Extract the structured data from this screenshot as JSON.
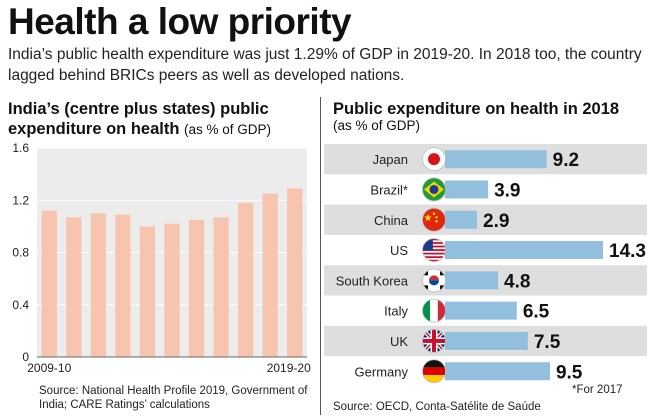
{
  "headline": "Health a low priority",
  "intro": "India’s public health expenditure was just 1.29% of GDP in 2019-20. In 2018 too, the country lagged behind BRICs peers as well as developed nations.",
  "left_panel": {
    "title": "India’s (centre plus states) public expenditure on health",
    "unit": "(as % of GDP)",
    "source": "Source: National Health Profile 2019, Government of India; CARE Ratings’ calculations"
  },
  "right_panel": {
    "title": "Public expenditure on health in 2018",
    "unit": "(as % of GDP)",
    "source": "Source: OECD, Conta-Satélite de Saúde",
    "footnote": "*For 2017"
  },
  "colors": {
    "india_bar": "#f7c4b0",
    "plot_bg": "#ececec",
    "country_bar": "#92bfdd",
    "row_shade": "#dedede"
  },
  "chart_data": [
    {
      "type": "bar",
      "title": "India’s (centre plus states) public expenditure on health",
      "ylabel": "(as % of GDP)",
      "ylim": [
        0,
        1.6
      ],
      "yticks": [
        0,
        0.4,
        0.8,
        1.2,
        1.6
      ],
      "x_tick_labels": [
        "2009-10",
        "2019-20"
      ],
      "values": [
        1.12,
        1.07,
        1.1,
        1.09,
        1.0,
        1.02,
        1.05,
        1.07,
        1.18,
        1.25,
        1.29
      ],
      "grid": true
    },
    {
      "type": "bar",
      "orientation": "horizontal",
      "title": "Public expenditure on health in 2018",
      "ylabel": "(as % of GDP)",
      "categories": [
        "Japan",
        "Brazil*",
        "China",
        "US",
        "South Korea",
        "Italy",
        "UK",
        "Germany"
      ],
      "values": [
        9.2,
        3.9,
        2.9,
        14.3,
        4.8,
        6.5,
        7.5,
        9.5
      ],
      "value_labels": [
        "9.2",
        "3.9",
        "2.9",
        "14.3",
        "4.8",
        "6.5",
        "7.5",
        "9.5"
      ],
      "flags": [
        "japan-flag",
        "brazil-flag",
        "china-flag",
        "us-flag",
        "south-korea-flag",
        "italy-flag",
        "uk-flag",
        "germany-flag"
      ]
    }
  ]
}
